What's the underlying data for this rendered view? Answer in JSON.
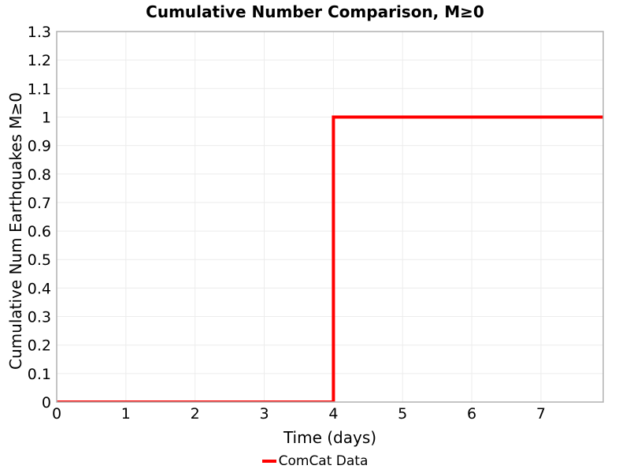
{
  "chart_data": {
    "type": "line",
    "title": "Cumulative Number Comparison, M≥0",
    "xlabel": "Time (days)",
    "ylabel": "Cumulative Num Earthquakes M≥0",
    "series": [
      {
        "name": "ComCat Data",
        "color": "#ff0000",
        "style": "step",
        "line_width": 4,
        "x": [
          0,
          4,
          4,
          7.9
        ],
        "y": [
          0,
          0,
          1,
          1
        ]
      }
    ],
    "step_event": {
      "time_days": 4,
      "cumulative_count": 1
    },
    "xlim": [
      0,
      7.9
    ],
    "ylim": [
      0,
      1.3
    ],
    "xticks": [
      0,
      1,
      2,
      3,
      4,
      5,
      6,
      7
    ],
    "xtick_labels": [
      "0",
      "1",
      "2",
      "3",
      "4",
      "5",
      "6",
      "7"
    ],
    "yticks": [
      0,
      0.1,
      0.2,
      0.3,
      0.4,
      0.5,
      0.6,
      0.7,
      0.8,
      0.9,
      1,
      1.1,
      1.2,
      1.3
    ],
    "ytick_labels": [
      "0",
      "0.1",
      "0.2",
      "0.3",
      "0.4",
      "0.5",
      "0.6",
      "0.7",
      "0.8",
      "0.9",
      "1",
      "1.1",
      "1.2",
      "1.3"
    ],
    "grid": true,
    "grid_color": "#ececec",
    "border_color": "#b0b0b0",
    "background": "#ffffff",
    "legend_position": "bottom-center"
  }
}
